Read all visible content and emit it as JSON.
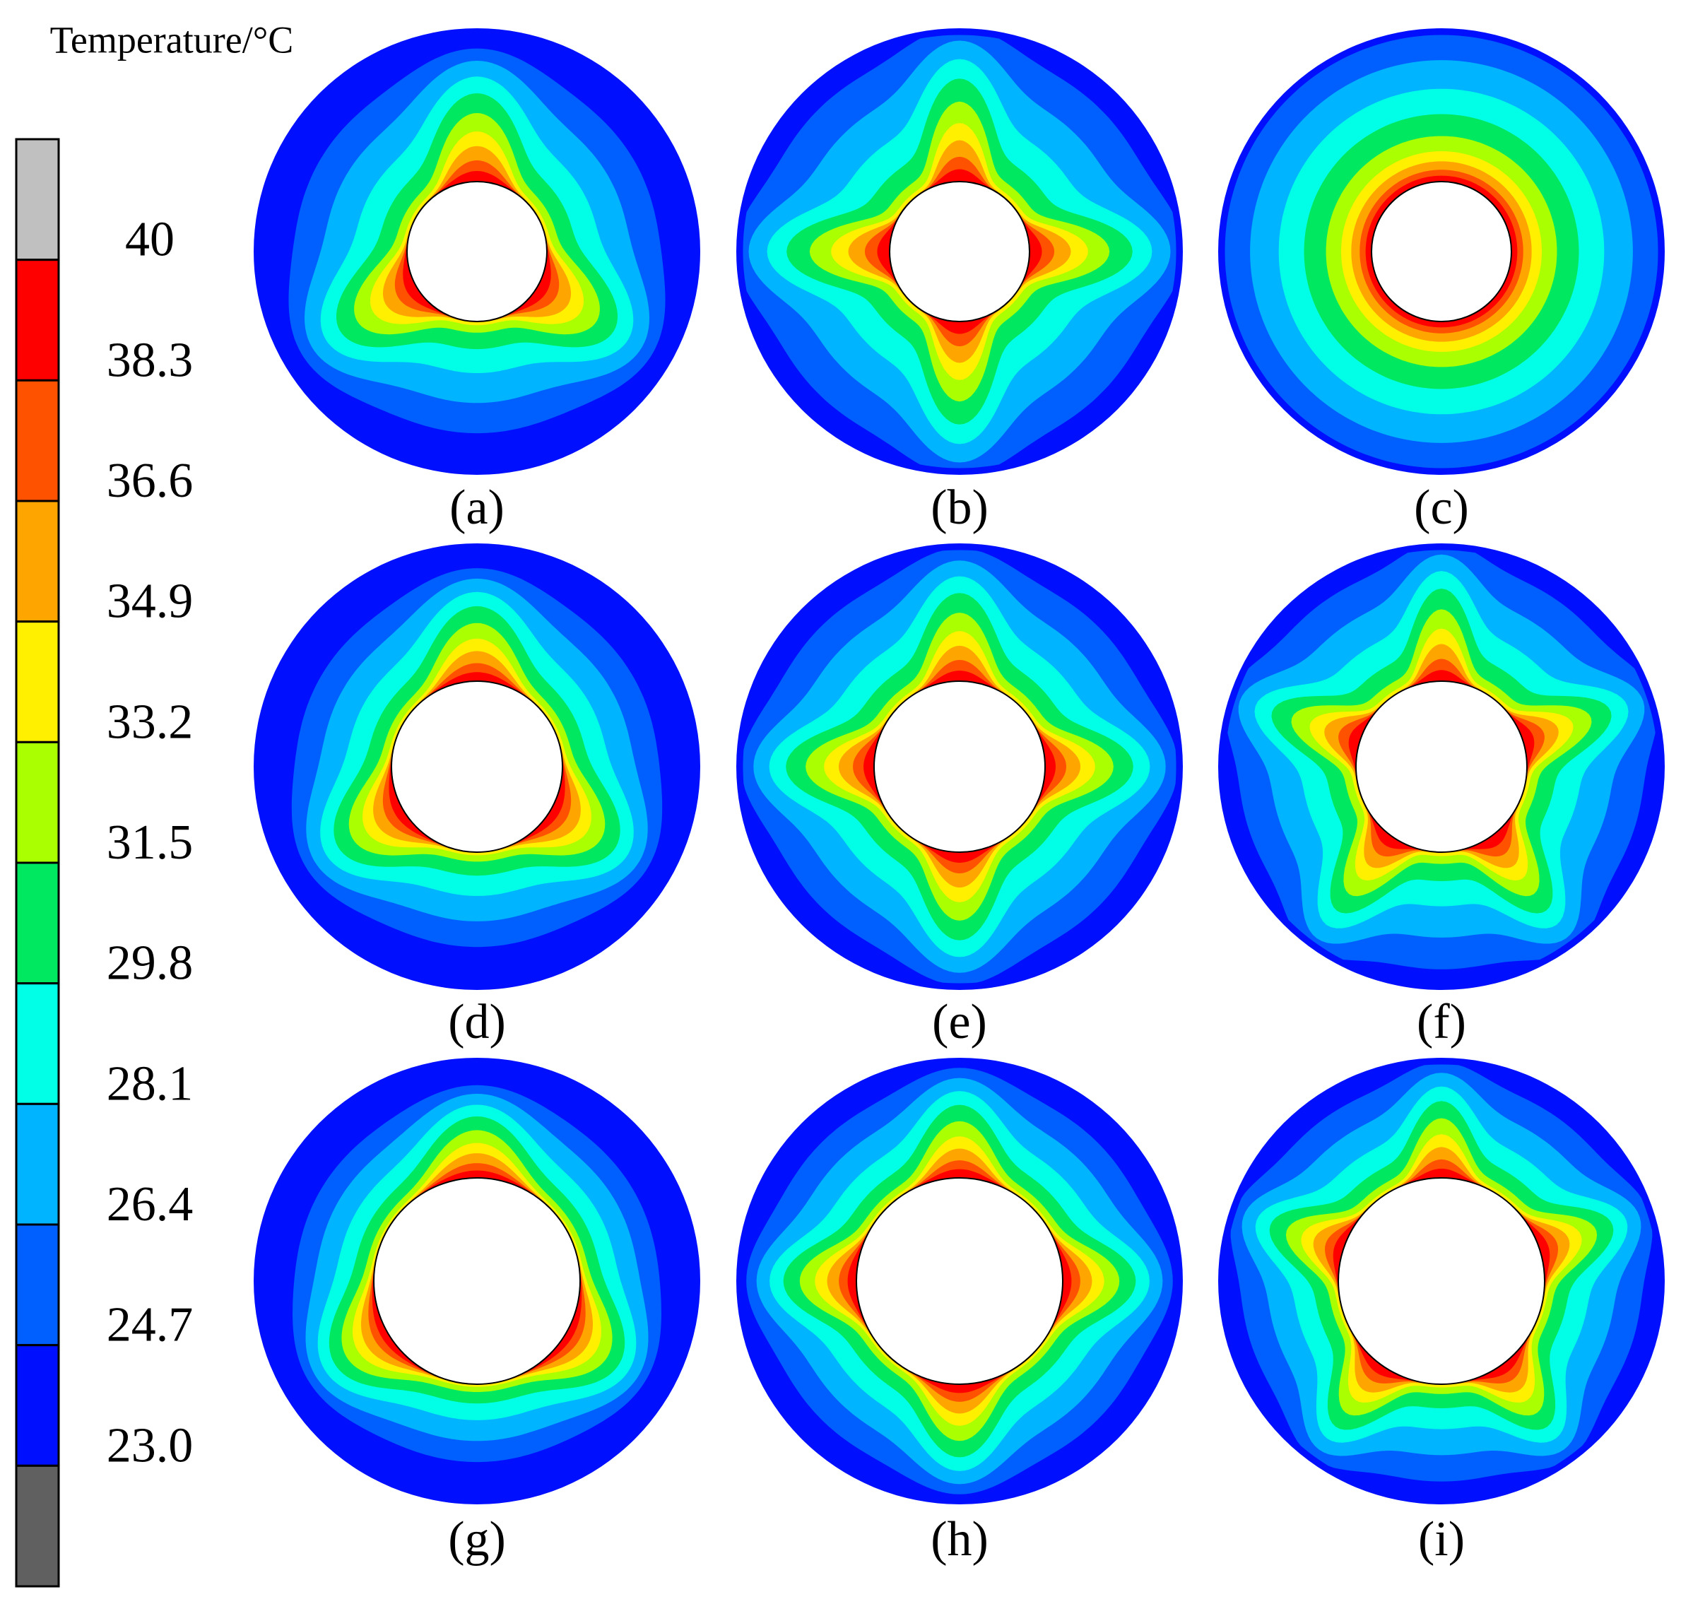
{
  "legend": {
    "title": "Temperature/°C",
    "labels": [
      "40",
      "38.3",
      "36.6",
      "34.9",
      "33.2",
      "31.5",
      "29.8",
      "28.1",
      "26.4",
      "24.7",
      "23.0"
    ],
    "colors": [
      "#c0c0c0",
      "#ff0000",
      "#ff5200",
      "#ffa500",
      "#fff000",
      "#aaff00",
      "#00e860",
      "#00ffe6",
      "#00b4ff",
      "#0060ff",
      "#0010ff",
      "#606060"
    ]
  },
  "panels": [
    "(a)",
    "(b)",
    "(c)",
    "(d)",
    "(e)",
    "(f)",
    "(g)",
    "(h)",
    "(i)"
  ]
}
